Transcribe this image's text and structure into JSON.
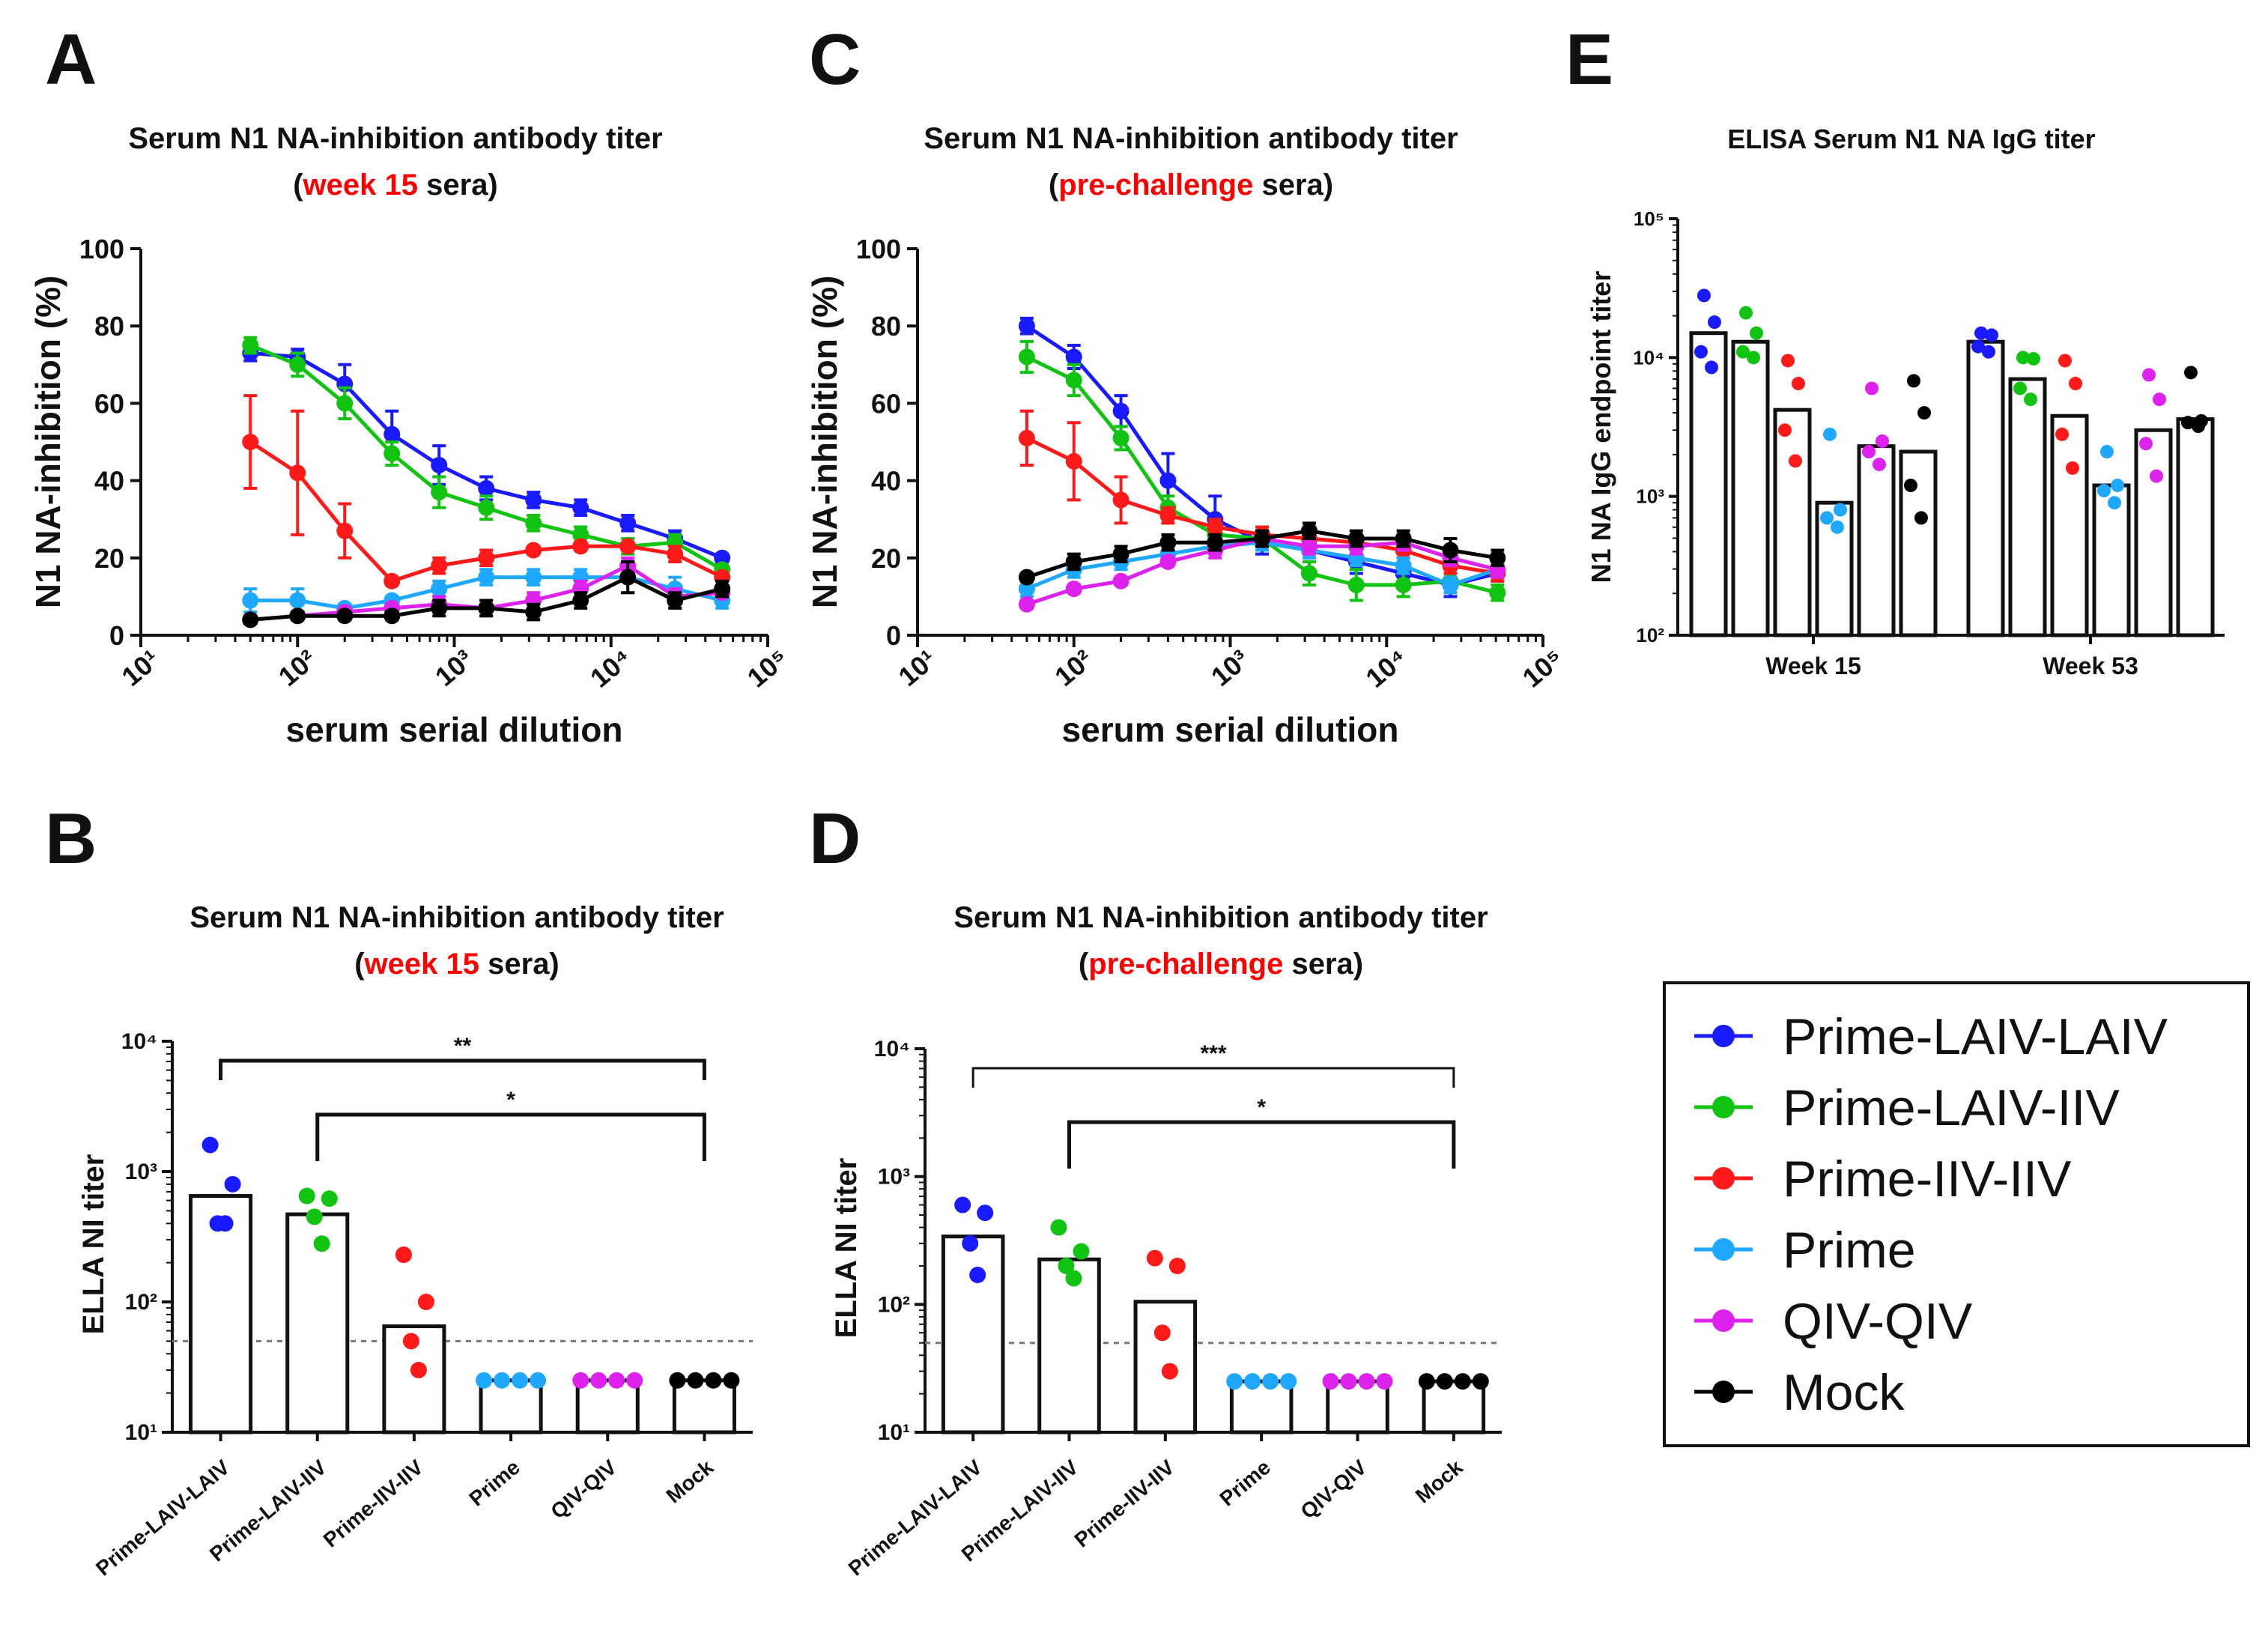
{
  "colors": {
    "Prime-LAIV-LAIV": "#1a1aff",
    "Prime-LAIV-IIV": "#12c412",
    "Prime-IIV-IIV": "#ff1a1a",
    "Prime": "#1fa8ff",
    "QIV-QIV": "#dd22ee",
    "Mock": "#000000"
  },
  "panels": {
    "A": {
      "letter": "A",
      "title_line1": "Serum N1 NA-inhibition antibody titer",
      "title_pre": "(",
      "title_red": "week 15",
      "title_post": " sera)"
    },
    "C": {
      "letter": "C",
      "title_line1": "Serum N1 NA-inhibition antibody titer",
      "title_pre": "(",
      "title_red": "pre-challenge",
      "title_post": " sera)"
    },
    "E": {
      "letter": "E",
      "title": "ELISA Serum N1 NA IgG titer"
    },
    "B": {
      "letter": "B",
      "title_line1": "Serum N1 NA-inhibition antibody titer",
      "title_pre": "(",
      "title_red": "week 15",
      "title_post": " sera)"
    },
    "D": {
      "letter": "D",
      "title_line1": "Serum N1 NA-inhibition antibody titer",
      "title_pre": "(",
      "title_red": "pre-challenge",
      "title_post": " sera)"
    }
  },
  "legend": [
    "Prime-LAIV-LAIV",
    "Prime-LAIV-IIV",
    "Prime-IIV-IIV",
    "Prime",
    "QIV-QIV",
    "Mock"
  ],
  "chart_data": [
    {
      "id": "A",
      "type": "line",
      "title": "Serum N1 NA-inhibition antibody titer (week 15 sera)",
      "xlabel": "serum serial dilution",
      "ylabel": "N1 NA-inhibition (%)",
      "xscale": "log",
      "xlim": [
        10,
        100000
      ],
      "ylim": [
        0,
        100
      ],
      "xticks": [
        "10¹",
        "10²",
        "10³",
        "10⁴",
        "10⁵"
      ],
      "yticks": [
        "0",
        "20",
        "40",
        "60",
        "80",
        "100"
      ],
      "x": [
        50,
        100,
        200,
        400,
        800,
        1600,
        3200,
        6400,
        12800,
        25600,
        51200
      ],
      "series": [
        {
          "name": "Prime-LAIV-LAIV",
          "values": [
            73,
            72,
            65,
            52,
            44,
            38,
            35,
            33,
            29,
            25,
            20
          ],
          "err": [
            2,
            2,
            5,
            6,
            5,
            3,
            2,
            2,
            2,
            2,
            1
          ]
        },
        {
          "name": "Prime-LAIV-IIV",
          "values": [
            75,
            70,
            60,
            47,
            37,
            33,
            29,
            26,
            23,
            24,
            17
          ],
          "err": [
            2,
            3,
            4,
            3,
            4,
            3,
            2,
            2,
            2,
            2,
            1
          ]
        },
        {
          "name": "Prime-IIV-IIV",
          "values": [
            50,
            42,
            27,
            14,
            18,
            20,
            22,
            23,
            23,
            21,
            15
          ],
          "err": [
            12,
            16,
            7,
            1,
            2,
            2,
            1,
            1,
            1,
            2,
            1
          ]
        },
        {
          "name": "Prime",
          "values": [
            9,
            9,
            7,
            9,
            12,
            15,
            15,
            15,
            15,
            12,
            9
          ],
          "err": [
            3,
            3,
            1,
            1,
            2,
            2,
            2,
            2,
            4,
            3,
            2
          ]
        },
        {
          "name": "QIV-QIV",
          "values": [
            4,
            5,
            6,
            7,
            8,
            7,
            9,
            12,
            18,
            10,
            11
          ],
          "err": [
            1,
            1,
            1,
            1,
            2,
            2,
            2,
            2,
            2,
            2,
            1
          ]
        },
        {
          "name": "Mock",
          "values": [
            4,
            5,
            5,
            5,
            7,
            7,
            6,
            9,
            15,
            9,
            12
          ],
          "err": [
            1,
            1,
            1,
            1,
            2,
            2,
            2,
            2,
            4,
            2,
            2
          ]
        }
      ]
    },
    {
      "id": "C",
      "type": "line",
      "title": "Serum N1 NA-inhibition antibody titer (pre-challenge sera)",
      "xlabel": "serum serial dilution",
      "ylabel": "N1 NA-inhibition (%)",
      "xscale": "log",
      "xlim": [
        10,
        100000
      ],
      "ylim": [
        0,
        100
      ],
      "xticks": [
        "10¹",
        "10²",
        "10³",
        "10⁴",
        "10⁵"
      ],
      "yticks": [
        "0",
        "20",
        "40",
        "60",
        "80",
        "100"
      ],
      "x": [
        50,
        100,
        200,
        400,
        800,
        1600,
        3200,
        6400,
        12800,
        25600,
        51200
      ],
      "series": [
        {
          "name": "Prime-LAIV-LAIV",
          "values": [
            80,
            72,
            58,
            40,
            30,
            24,
            22,
            19,
            16,
            13,
            16
          ],
          "err": [
            2,
            3,
            4,
            7,
            6,
            3,
            2,
            3,
            2,
            3,
            2
          ]
        },
        {
          "name": "Prime-LAIV-IIV",
          "values": [
            72,
            66,
            51,
            33,
            26,
            25,
            16,
            13,
            13,
            14,
            11
          ],
          "err": [
            4,
            4,
            3,
            3,
            3,
            2,
            3,
            4,
            3,
            3,
            2
          ]
        },
        {
          "name": "Prime-IIV-IIV",
          "values": [
            51,
            45,
            35,
            31,
            28,
            26,
            25,
            24,
            22,
            18,
            16
          ],
          "err": [
            7,
            10,
            6,
            2,
            2,
            2,
            1,
            1,
            2,
            2,
            2
          ]
        },
        {
          "name": "Prime",
          "values": [
            12,
            17,
            19,
            21,
            23,
            24,
            22,
            20,
            18,
            13,
            17
          ],
          "err": [
            2,
            2,
            2,
            2,
            2,
            2,
            2,
            2,
            2,
            2,
            2
          ]
        },
        {
          "name": "QIV-QIV",
          "values": [
            8,
            12,
            14,
            19,
            22,
            25,
            23,
            23,
            24,
            20,
            17
          ],
          "err": [
            1,
            1,
            1,
            1,
            2,
            2,
            2,
            2,
            2,
            2,
            2
          ]
        },
        {
          "name": "Mock",
          "values": [
            15,
            19,
            21,
            24,
            24,
            25,
            27,
            25,
            25,
            22,
            20
          ],
          "err": [
            1,
            2,
            2,
            2,
            2,
            2,
            2,
            2,
            2,
            3,
            2
          ]
        }
      ]
    },
    {
      "id": "E",
      "type": "bar",
      "yscale": "log",
      "title": "ELISA Serum N1 NA IgG titer",
      "ylabel": "N1 NA IgG endpoint titer",
      "ylim": [
        100,
        100000
      ],
      "yticks": [
        "10²",
        "10³",
        "10⁴",
        "10⁵"
      ],
      "categories": [
        "Week 15",
        "Week 53"
      ],
      "series": [
        {
          "name": "Prime-LAIV-LAIV",
          "values": [
            15000,
            13000
          ],
          "points": [
            [
              28000,
              18000,
              11000,
              8500
            ],
            [
              15000,
              14500,
              12000,
              11000
            ]
          ]
        },
        {
          "name": "Prime-LAIV-IIV",
          "values": [
            13000,
            7000
          ],
          "points": [
            [
              21000,
              15000,
              11000,
              10000
            ],
            [
              10000,
              9800,
              6000,
              5000
            ]
          ]
        },
        {
          "name": "Prime-IIV-IIV",
          "values": [
            4200,
            3800
          ],
          "points": [
            [
              9500,
              6500,
              3000,
              1800
            ],
            [
              9500,
              6500,
              2800,
              1600
            ]
          ]
        },
        {
          "name": "Prime",
          "values": [
            900,
            1200
          ],
          "points": [
            [
              2800,
              800,
              700,
              600
            ],
            [
              2100,
              1200,
              1100,
              900
            ]
          ]
        },
        {
          "name": "QIV-QIV",
          "values": [
            2300,
            3000
          ],
          "points": [
            [
              6000,
              2500,
              2100,
              1700
            ],
            [
              7500,
              5000,
              2400,
              1400
            ]
          ]
        },
        {
          "name": "Mock",
          "values": [
            2100,
            3600
          ],
          "points": [
            [
              6800,
              4000,
              1200,
              700
            ],
            [
              7800,
              3500,
              3400,
              3200
            ]
          ]
        }
      ]
    },
    {
      "id": "B",
      "type": "bar",
      "yscale": "log",
      "title": "Serum N1 NA-inhibition antibody titer (week 15 sera)",
      "ylabel": "ELLA NI titer",
      "ylim": [
        10,
        10000
      ],
      "yticks": [
        "10¹",
        "10²",
        "10³",
        "10⁴"
      ],
      "detection_limit": 50,
      "categories": [
        "Prime-LAIV-LAIV",
        "Prime-LAIV-IIV",
        "Prime-IIV-IIV",
        "Prime",
        "QIV-QIV",
        "Mock"
      ],
      "values": [
        650,
        470,
        65,
        25,
        25,
        25
      ],
      "points": [
        [
          1600,
          800,
          400,
          400
        ],
        [
          650,
          620,
          450,
          280
        ],
        [
          230,
          100,
          50,
          30
        ],
        [
          25,
          25,
          25,
          25
        ],
        [
          25,
          25,
          25,
          25
        ],
        [
          25,
          25,
          25,
          25
        ]
      ],
      "significance": [
        {
          "from": "Prime-LAIV-LAIV",
          "to": "Mock",
          "label": "**"
        },
        {
          "from": "Prime-LAIV-IIV",
          "to": "Mock",
          "label": "*"
        }
      ]
    },
    {
      "id": "D",
      "type": "bar",
      "yscale": "log",
      "title": "Serum N1 NA-inhibition antibody titer (pre-challenge sera)",
      "ylabel": "ELLA NI titer",
      "ylim": [
        10,
        10000
      ],
      "yticks": [
        "10¹",
        "10²",
        "10³",
        "10⁴"
      ],
      "detection_limit": 50,
      "categories": [
        "Prime-LAIV-LAIV",
        "Prime-LAIV-IIV",
        "Prime-IIV-IIV",
        "Prime",
        "QIV-QIV",
        "Mock"
      ],
      "values": [
        340,
        225,
        105,
        25,
        25,
        25
      ],
      "points": [
        [
          600,
          520,
          300,
          170
        ],
        [
          400,
          260,
          200,
          160
        ],
        [
          230,
          200,
          60,
          30
        ],
        [
          25,
          25,
          25,
          25
        ],
        [
          25,
          25,
          25,
          25
        ],
        [
          25,
          25,
          25,
          25
        ]
      ],
      "significance": [
        {
          "from": "Prime-LAIV-LAIV",
          "to": "Mock",
          "label": "***"
        },
        {
          "from": "Prime-LAIV-IIV",
          "to": "Mock",
          "label": "*"
        }
      ]
    }
  ]
}
